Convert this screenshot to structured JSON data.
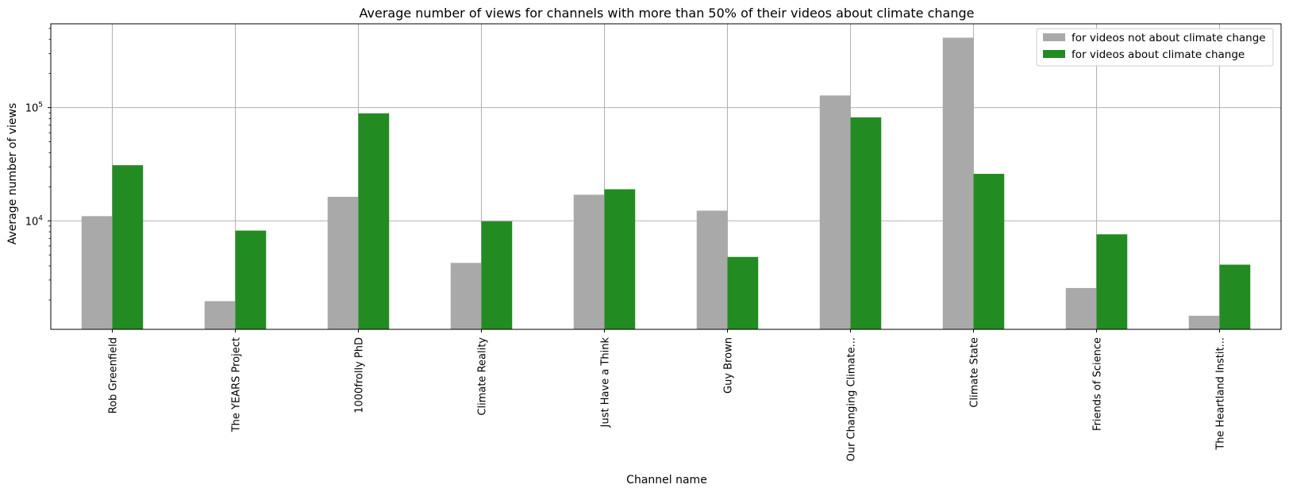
{
  "chart_data": {
    "type": "bar",
    "title": "Average number of views for channels with more than 50% of their videos about climate change",
    "xlabel": "Channel name",
    "ylabel": "Average number of views",
    "y_scale": "log",
    "ylim": [
      1100,
      550000
    ],
    "y_major_ticks": [
      {
        "value": 10000,
        "base": "10",
        "exp": "4"
      },
      {
        "value": 100000,
        "base": "10",
        "exp": "5"
      }
    ],
    "grid": true,
    "legend_position": "top-right",
    "categories": [
      "Rob Greenfield",
      "The YEARS Project",
      "1000frolly PhD",
      "Climate Reality",
      "Just Have a Think",
      "Guy Brown",
      "Our Changing Climate...",
      "Climate State",
      "Friends of Science",
      "The Heartland Instit..."
    ],
    "series": [
      {
        "name": "for videos not about climate change",
        "color": "#a9a9a9",
        "values": [
          11000,
          1950,
          16300,
          4250,
          17000,
          12300,
          128000,
          415000,
          2550,
          1450
        ]
      },
      {
        "name": "for videos about climate change",
        "color": "#228b22",
        "values": [
          31000,
          8200,
          89000,
          9900,
          19000,
          4800,
          82000,
          26000,
          7600,
          4100
        ]
      }
    ]
  }
}
